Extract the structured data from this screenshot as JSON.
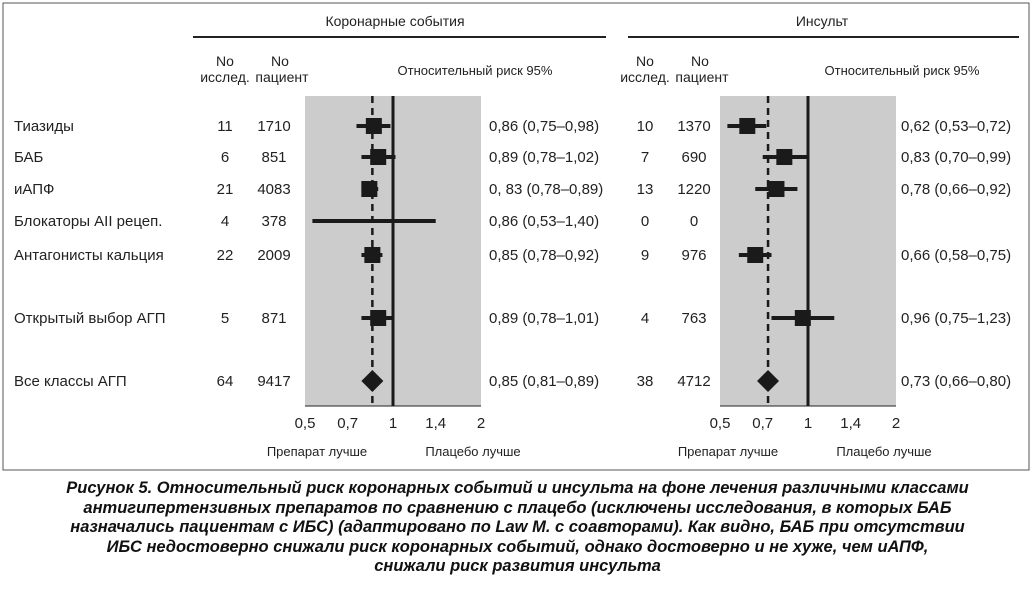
{
  "panels": [
    {
      "title": "Коронарные события",
      "col_studies": [
        "No",
        "исслед."
      ],
      "col_patients": [
        "No",
        "пациент"
      ],
      "col_rr": "Относительный риск 95%",
      "ticks": [
        "0,5",
        "0,7",
        "1",
        "1,4",
        "2"
      ],
      "label_left": "Препарат лучше",
      "label_right": "Плацебо лучше"
    },
    {
      "title": "Инсульт",
      "col_studies": [
        "No",
        "исслед."
      ],
      "col_patients": [
        "No",
        "пациент"
      ],
      "col_rr": "Относительный риск 95%",
      "ticks": [
        "0,5",
        "0,7",
        "1",
        "1,4",
        "2"
      ],
      "label_left": "Препарат лучше",
      "label_right": "Плацебо лучше"
    }
  ],
  "rows": [
    {
      "label": "Тиазиды",
      "c_n": "11",
      "c_p": "1710",
      "c_text": "0,86 (0,75–0,98)",
      "s_n": "10",
      "s_p": "1370",
      "s_text": "0,62 (0,53–0,72)"
    },
    {
      "label": "БАБ",
      "c_n": "6",
      "c_p": "851",
      "c_text": "0,89 (0,78–1,02)",
      "s_n": "7",
      "s_p": "690",
      "s_text": "0,83 (0,70–0,99)"
    },
    {
      "label": "иАПФ",
      "c_n": "21",
      "c_p": "4083",
      "c_text": "0, 83 (0,78–0,89)",
      "s_n": "13",
      "s_p": "1220",
      "s_text": "0,78 (0,66–0,92)"
    },
    {
      "label": "Блокаторы AII рецеп.",
      "c_n": "4",
      "c_p": "378",
      "c_text": "0,86 (0,53–1,40)",
      "s_n": "0",
      "s_p": "0",
      "s_text": ""
    },
    {
      "label": "Антагонисты кальция",
      "c_n": "22",
      "c_p": "2009",
      "c_text": "0,85 (0,78–0,92)",
      "s_n": "9",
      "s_p": "976",
      "s_text": "0,66 (0,58–0,75)"
    },
    {
      "label": "Открытый выбор АГП",
      "c_n": "5",
      "c_p": "871",
      "c_text": "0,89 (0,78–1,01)",
      "s_n": "4",
      "s_p": "763",
      "s_text": "0,96 (0,75–1,23)"
    },
    {
      "label": "Все классы АГП",
      "c_n": "64",
      "c_p": "9417",
      "c_text": "0,85 (0,81–0,89)",
      "s_n": "38",
      "s_p": "4712",
      "s_text": "0,73 (0,66–0,80)"
    }
  ],
  "caption": [
    "Рисунок 5.  Относительный риск коронарных событий и инсульта на фоне лечения различными классами",
    "антигипертензивных препаратов по сравнению с плацебо (исключены исследования, в которых БАБ",
    "назначались пациентам с ИБС) (адаптировано по Law M. с соавторами). Как видно, БАБ при отсутствии",
    "ИБС недостоверно снижали риск коронарных событий, однако достоверно и не хуже, чем иАПФ,",
    "снижали риск развития инсульта"
  ],
  "colors": {
    "shading": "#cccccc",
    "marker": "#1a1a1a",
    "frame": "#555555"
  },
  "chart_data": [
    {
      "type": "scatter",
      "subtype": "forest",
      "title": "Коронарные события",
      "scale": "log",
      "xlim": [
        0.5,
        2
      ],
      "reference": 1,
      "pooled_reference": 0.85,
      "categories": [
        "Тиазиды",
        "БАБ",
        "иАПФ",
        "Блокаторы AII рецеп.",
        "Антагонисты кальция",
        "Открытый выбор АГП",
        "Все классы АГП"
      ],
      "estimates": [
        0.86,
        0.89,
        0.83,
        0.86,
        0.85,
        0.89,
        0.85
      ],
      "lower": [
        0.75,
        0.78,
        0.78,
        0.53,
        0.78,
        0.78,
        0.81
      ],
      "upper": [
        0.98,
        1.02,
        0.89,
        1.4,
        0.92,
        1.01,
        0.89
      ],
      "markers": [
        "square",
        "square",
        "square",
        "none",
        "square",
        "square",
        "diamond"
      ]
    },
    {
      "type": "scatter",
      "subtype": "forest",
      "title": "Инсульт",
      "scale": "log",
      "xlim": [
        0.5,
        2
      ],
      "reference": 1,
      "pooled_reference": 0.73,
      "categories": [
        "Тиазиды",
        "БАБ",
        "иАПФ",
        "Блокаторы AII рецеп.",
        "Антагонисты кальция",
        "Открытый выбор АГП",
        "Все классы АГП"
      ],
      "estimates": [
        0.62,
        0.83,
        0.78,
        null,
        0.66,
        0.96,
        0.73
      ],
      "lower": [
        0.53,
        0.7,
        0.66,
        null,
        0.58,
        0.75,
        0.66
      ],
      "upper": [
        0.72,
        0.99,
        0.92,
        null,
        0.75,
        1.23,
        0.8
      ],
      "markers": [
        "square",
        "square",
        "square",
        "none",
        "square",
        "square",
        "diamond"
      ]
    }
  ]
}
